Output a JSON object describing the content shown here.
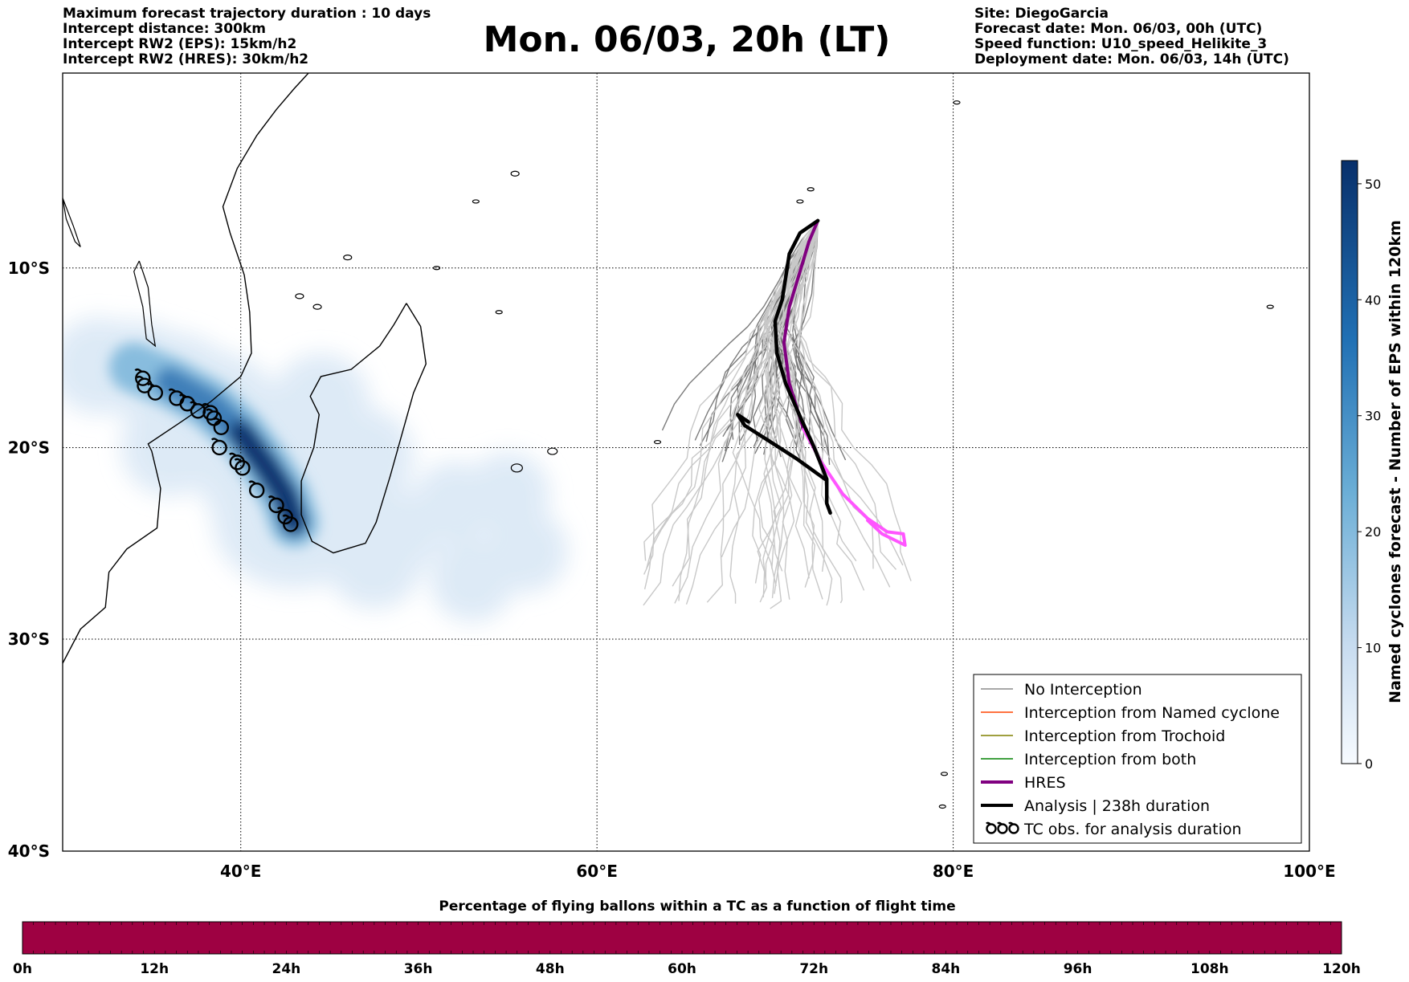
{
  "header": {
    "info_left": [
      "Maximum forecast trajectory duration : 10 days",
      "Intercept distance: 300km",
      "Intercept RW2 (EPS):  15km/h2",
      "Intercept RW2 (HRES): 30km/h2"
    ],
    "title": "Mon. 06/03, 20h (LT)",
    "info_right": [
      "Site: DiegoGarcia",
      "Forecast date: Mon. 06/03, 00h (UTC)",
      "Speed function: U10_speed_Helikite_3",
      "Deployment date: Mon. 06/03, 14h (UTC)"
    ]
  },
  "map": {
    "lat_labels": [
      {
        "lat": -10,
        "text": "10°S"
      },
      {
        "lat": -20,
        "text": "20°S"
      },
      {
        "lat": -30,
        "text": "30°S"
      },
      {
        "lat": -40,
        "text": "40°S"
      }
    ],
    "lon_labels": [
      {
        "lon": 40,
        "text": "40°E"
      },
      {
        "lon": 60,
        "text": "60°E"
      },
      {
        "lon": 80,
        "text": "80°E"
      },
      {
        "lon": 100,
        "text": "100°E"
      }
    ],
    "release_site": {
      "name": "DiegoGarcia",
      "lon": 72.4,
      "lat": -7.3
    },
    "analysis_track": [
      [
        72.4,
        -7.3
      ],
      [
        71.4,
        -8.0
      ],
      [
        70.8,
        -9.2
      ],
      [
        70.6,
        -10.5
      ],
      [
        70.4,
        -11.8
      ],
      [
        70.0,
        -13.0
      ],
      [
        70.1,
        -14.8
      ],
      [
        70.6,
        -16.5
      ],
      [
        71.4,
        -18.3
      ],
      [
        72.2,
        -20.0
      ],
      [
        72.9,
        -21.7
      ],
      [
        72.9,
        -23.0
      ],
      [
        73.1,
        -23.5
      ]
    ],
    "analysis_loop": [
      [
        72.8,
        -21.7
      ],
      [
        71.2,
        -20.6
      ],
      [
        69.6,
        -19.6
      ],
      [
        68.3,
        -18.8
      ],
      [
        67.9,
        -18.2
      ],
      [
        68.5,
        -18.6
      ]
    ],
    "hres_purple": [
      [
        72.4,
        -7.3
      ],
      [
        71.9,
        -8.5
      ],
      [
        71.4,
        -10.2
      ],
      [
        70.8,
        -12.2
      ],
      [
        70.5,
        -14.2
      ],
      [
        70.8,
        -16.5
      ],
      [
        71.6,
        -19.0
      ]
    ],
    "hres_pink": [
      [
        71.6,
        -19.0
      ],
      [
        72.6,
        -20.8
      ],
      [
        73.8,
        -22.5
      ],
      [
        75.2,
        -23.8
      ],
      [
        76.3,
        -24.5
      ],
      [
        77.2,
        -24.6
      ],
      [
        77.3,
        -25.2
      ],
      [
        76.0,
        -24.6
      ],
      [
        75.2,
        -23.9
      ]
    ],
    "tc_obs": [
      [
        34.5,
        -16.2
      ],
      [
        34.6,
        -16.6
      ],
      [
        35.2,
        -17.0
      ],
      [
        36.4,
        -17.3
      ],
      [
        37.0,
        -17.6
      ],
      [
        37.6,
        -18.0
      ],
      [
        38.3,
        -18.1
      ],
      [
        38.5,
        -18.4
      ],
      [
        38.9,
        -18.9
      ],
      [
        38.8,
        -20.0
      ],
      [
        39.8,
        -20.8
      ],
      [
        40.1,
        -21.1
      ],
      [
        40.9,
        -22.3
      ],
      [
        42.0,
        -23.1
      ],
      [
        42.5,
        -23.7
      ],
      [
        42.8,
        -24.1
      ]
    ],
    "density_core": [
      [
        34.0,
        -15.6
      ],
      [
        36.0,
        -16.4
      ],
      [
        38.2,
        -17.6
      ],
      [
        40.0,
        -19.2
      ],
      [
        41.4,
        -21.0
      ],
      [
        42.5,
        -22.6
      ],
      [
        43.0,
        -24.0
      ]
    ],
    "density_lobes": [
      [
        49.0,
        -24.5
      ],
      [
        52.0,
        -23.0
      ],
      [
        55.0,
        -22.5
      ],
      [
        56.0,
        -25.5
      ],
      [
        53.0,
        -27.0
      ]
    ]
  },
  "legend": {
    "items": [
      {
        "label": "No Interception",
        "color": "#8c8c8c",
        "width": 1.5,
        "kind": "line"
      },
      {
        "label": "Interception from Named cyclone",
        "color": "#ff4500",
        "width": 1.5,
        "kind": "line"
      },
      {
        "label": "Interception from Trochoid",
        "color": "#808000",
        "width": 1.5,
        "kind": "line"
      },
      {
        "label": "Interception from both",
        "color": "#008000",
        "width": 1.5,
        "kind": "line"
      },
      {
        "label": "HRES",
        "color": "#800080",
        "width": 4,
        "kind": "line"
      },
      {
        "label": "Analysis | 238h duration",
        "color": "#000000",
        "width": 4,
        "kind": "line"
      },
      {
        "label": "TC obs. for analysis duration",
        "color": "#000000",
        "width": 2,
        "kind": "tc"
      }
    ]
  },
  "colorbar": {
    "title": "Named cyclones forecast - Number of EPS within 120km",
    "ticks": [
      0,
      10,
      20,
      30,
      40,
      50
    ],
    "max": 52,
    "color_low": "#deebf7",
    "color_high": "#08306b"
  },
  "percent_bar": {
    "title": "Percentage of flying ballons within a TC as a function of flight time",
    "ticks": [
      "0h",
      "12h",
      "24h",
      "36h",
      "48h",
      "60h",
      "72h",
      "84h",
      "96h",
      "108h",
      "120h"
    ],
    "color": "#9e0142"
  },
  "colors": {
    "no_interception_dark": "#6e6e6e",
    "no_interception_light": "#c8c8c8",
    "hres": "#800080",
    "hres_late": "#ff55ff",
    "analysis": "#000000",
    "density_light": "#dce9f6",
    "density_mid": "#6baed6",
    "density_dark": "#08306b"
  }
}
